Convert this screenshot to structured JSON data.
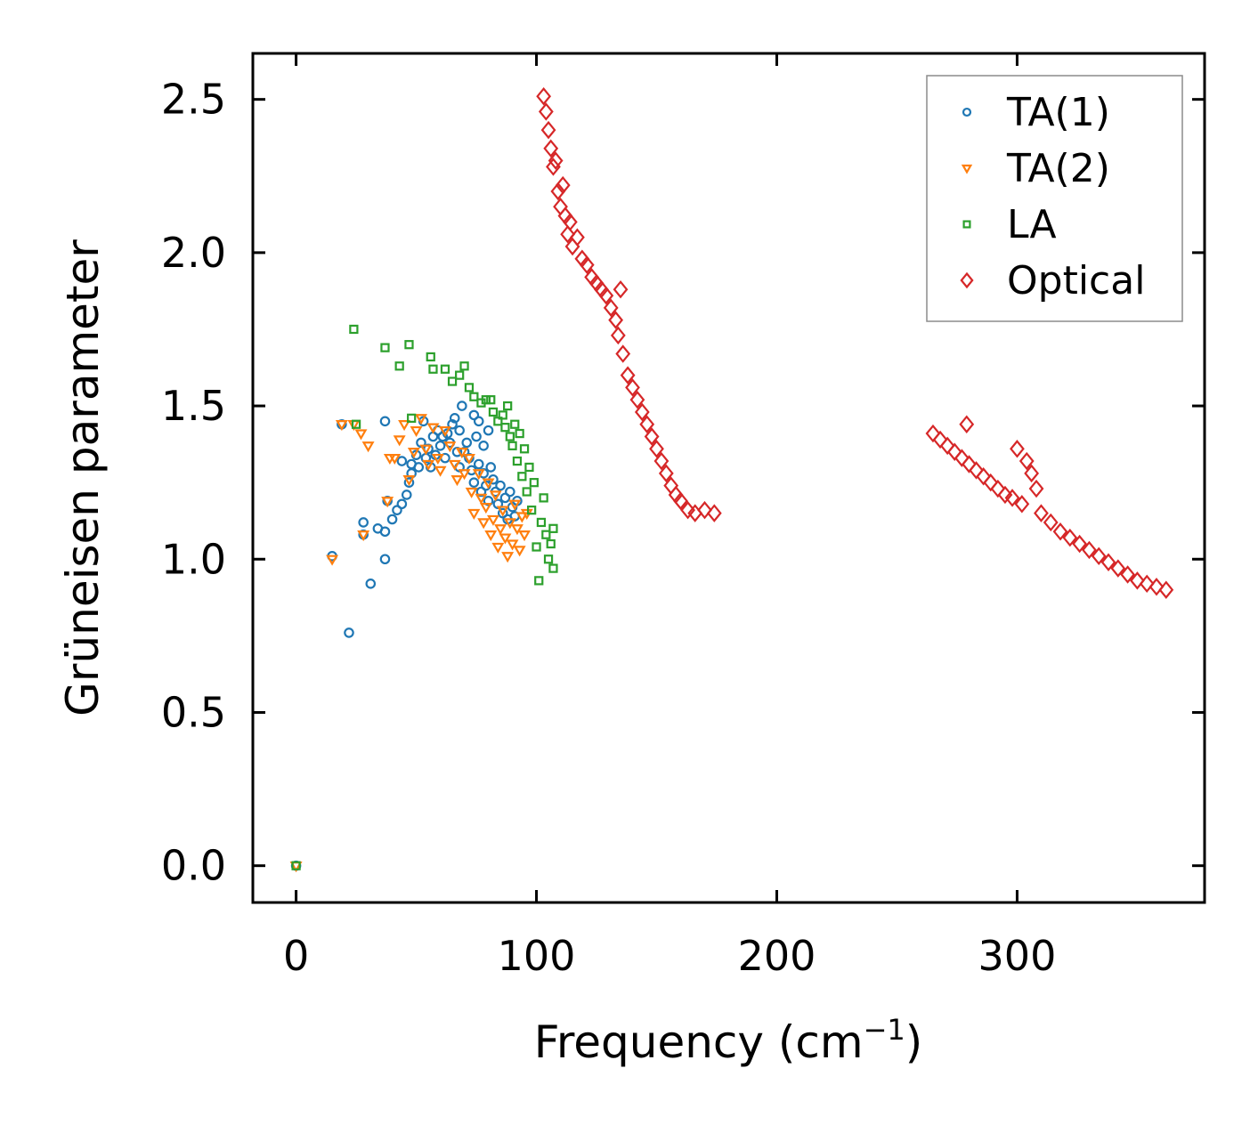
{
  "chart_data": {
    "type": "scatter",
    "title": "",
    "xlabel": "Frequency (cm",
    "xlabel_sup": "−1",
    "xlabel_close": ")",
    "ylabel": "Grüneisen parameter",
    "xlim": [
      -18,
      378
    ],
    "ylim": [
      -0.12,
      2.65
    ],
    "xticks": [
      0,
      100,
      200,
      300
    ],
    "xtick_labels": [
      "0",
      "100",
      "200",
      "300"
    ],
    "yticks": [
      0.0,
      0.5,
      1.0,
      1.5,
      2.0,
      2.5
    ],
    "ytick_labels": [
      "0.0",
      "0.5",
      "1.0",
      "1.5",
      "2.0",
      "2.5"
    ],
    "grid": false,
    "legend_position": "top-right",
    "series": [
      {
        "name": "TA(1)",
        "marker": "circle",
        "color": "#1f77b4",
        "points": [
          [
            0,
            0.0
          ],
          [
            15,
            1.01
          ],
          [
            19,
            1.44
          ],
          [
            22,
            0.76
          ],
          [
            28,
            1.08
          ],
          [
            28,
            1.12
          ],
          [
            31,
            0.92
          ],
          [
            34,
            1.1
          ],
          [
            37,
            1.09
          ],
          [
            37,
            1.0
          ],
          [
            37,
            1.45
          ],
          [
            38,
            1.19
          ],
          [
            40,
            1.13
          ],
          [
            42,
            1.16
          ],
          [
            44,
            1.18
          ],
          [
            44,
            1.32
          ],
          [
            46,
            1.21
          ],
          [
            47,
            1.25
          ],
          [
            48,
            1.28
          ],
          [
            48,
            1.31
          ],
          [
            50,
            1.34
          ],
          [
            51,
            1.3
          ],
          [
            52,
            1.38
          ],
          [
            53,
            1.45
          ],
          [
            54,
            1.33
          ],
          [
            55,
            1.36
          ],
          [
            56,
            1.3
          ],
          [
            57,
            1.4
          ],
          [
            58,
            1.34
          ],
          [
            59,
            1.42
          ],
          [
            60,
            1.37
          ],
          [
            61,
            1.4
          ],
          [
            62,
            1.33
          ],
          [
            63,
            1.41
          ],
          [
            64,
            1.38
          ],
          [
            65,
            1.44
          ],
          [
            66,
            1.46
          ],
          [
            67,
            1.35
          ],
          [
            68,
            1.42
          ],
          [
            68,
            1.3
          ],
          [
            69,
            1.5
          ],
          [
            70,
            1.35
          ],
          [
            71,
            1.38
          ],
          [
            72,
            1.33
          ],
          [
            73,
            1.29
          ],
          [
            74,
            1.47
          ],
          [
            74,
            1.25
          ],
          [
            75,
            1.4
          ],
          [
            76,
            1.31
          ],
          [
            76,
            1.45
          ],
          [
            77,
            1.22
          ],
          [
            78,
            1.37
          ],
          [
            78,
            1.28
          ],
          [
            79,
            1.24
          ],
          [
            80,
            1.42
          ],
          [
            80,
            1.19
          ],
          [
            81,
            1.3
          ],
          [
            82,
            1.26
          ],
          [
            83,
            1.22
          ],
          [
            84,
            1.18
          ],
          [
            85,
            1.24
          ],
          [
            86,
            1.15
          ],
          [
            87,
            1.2
          ],
          [
            88,
            1.13
          ],
          [
            89,
            1.22
          ],
          [
            90,
            1.17
          ],
          [
            91,
            1.14
          ],
          [
            92,
            1.19
          ]
        ]
      },
      {
        "name": "TA(2)",
        "marker": "triangle-down",
        "color": "#ff7f0e",
        "points": [
          [
            0,
            0.0
          ],
          [
            15,
            1.0
          ],
          [
            19,
            1.44
          ],
          [
            24,
            1.44
          ],
          [
            27,
            1.41
          ],
          [
            28,
            1.08
          ],
          [
            30,
            1.37
          ],
          [
            38,
            1.19
          ],
          [
            39,
            1.33
          ],
          [
            41,
            1.33
          ],
          [
            43,
            1.39
          ],
          [
            45,
            1.44
          ],
          [
            47,
            1.26
          ],
          [
            49,
            1.35
          ],
          [
            50,
            1.42
          ],
          [
            52,
            1.46
          ],
          [
            54,
            1.36
          ],
          [
            55,
            1.31
          ],
          [
            57,
            1.43
          ],
          [
            59,
            1.33
          ],
          [
            60,
            1.29
          ],
          [
            62,
            1.42
          ],
          [
            64,
            1.37
          ],
          [
            66,
            1.31
          ],
          [
            67,
            1.26
          ],
          [
            69,
            1.35
          ],
          [
            70,
            1.28
          ],
          [
            72,
            1.33
          ],
          [
            73,
            1.22
          ],
          [
            74,
            1.15
          ],
          [
            76,
            1.28
          ],
          [
            77,
            1.2
          ],
          [
            78,
            1.12
          ],
          [
            79,
            1.17
          ],
          [
            80,
            1.25
          ],
          [
            81,
            1.08
          ],
          [
            82,
            1.13
          ],
          [
            83,
            1.21
          ],
          [
            84,
            1.04
          ],
          [
            85,
            1.1
          ],
          [
            86,
            1.16
          ],
          [
            87,
            1.07
          ],
          [
            88,
            1.01
          ],
          [
            89,
            1.12
          ],
          [
            90,
            1.05
          ],
          [
            91,
            1.18
          ],
          [
            92,
            1.1
          ],
          [
            93,
            1.03
          ],
          [
            94,
            1.14
          ],
          [
            95,
            1.08
          ],
          [
            96,
            1.15
          ]
        ]
      },
      {
        "name": "LA",
        "marker": "square",
        "color": "#2ca02c",
        "points": [
          [
            0,
            0.0
          ],
          [
            24,
            1.75
          ],
          [
            25,
            1.44
          ],
          [
            37,
            1.69
          ],
          [
            43,
            1.63
          ],
          [
            47,
            1.7
          ],
          [
            48,
            1.46
          ],
          [
            56,
            1.66
          ],
          [
            57,
            1.62
          ],
          [
            62,
            1.62
          ],
          [
            65,
            1.58
          ],
          [
            68,
            1.6
          ],
          [
            70,
            1.63
          ],
          [
            72,
            1.56
          ],
          [
            74,
            1.53
          ],
          [
            77,
            1.51
          ],
          [
            79,
            1.52
          ],
          [
            81,
            1.52
          ],
          [
            82,
            1.48
          ],
          [
            84,
            1.45
          ],
          [
            86,
            1.47
          ],
          [
            87,
            1.43
          ],
          [
            88,
            1.5
          ],
          [
            89,
            1.4
          ],
          [
            90,
            1.37
          ],
          [
            91,
            1.44
          ],
          [
            92,
            1.32
          ],
          [
            93,
            1.41
          ],
          [
            94,
            1.27
          ],
          [
            95,
            1.36
          ],
          [
            96,
            1.22
          ],
          [
            97,
            1.3
          ],
          [
            98,
            1.16
          ],
          [
            99,
            1.25
          ],
          [
            100,
            1.04
          ],
          [
            101,
            0.93
          ],
          [
            102,
            1.12
          ],
          [
            103,
            1.2
          ],
          [
            104,
            1.08
          ],
          [
            105,
            1.0
          ],
          [
            106,
            1.05
          ],
          [
            107,
            0.97
          ],
          [
            107,
            1.1
          ]
        ]
      },
      {
        "name": "Optical",
        "marker": "diamond",
        "color": "#d62728",
        "points": [
          [
            103,
            2.51
          ],
          [
            104,
            2.46
          ],
          [
            105,
            2.4
          ],
          [
            106,
            2.34
          ],
          [
            107,
            2.28
          ],
          [
            108,
            2.3
          ],
          [
            109,
            2.2
          ],
          [
            110,
            2.15
          ],
          [
            111,
            2.22
          ],
          [
            112,
            2.12
          ],
          [
            113,
            2.06
          ],
          [
            114,
            2.1
          ],
          [
            115,
            2.02
          ],
          [
            117,
            2.05
          ],
          [
            119,
            1.98
          ],
          [
            121,
            1.96
          ],
          [
            123,
            1.92
          ],
          [
            125,
            1.9
          ],
          [
            127,
            1.88
          ],
          [
            129,
            1.86
          ],
          [
            131,
            1.82
          ],
          [
            133,
            1.78
          ],
          [
            134,
            1.73
          ],
          [
            135,
            1.88
          ],
          [
            136,
            1.67
          ],
          [
            138,
            1.6
          ],
          [
            140,
            1.56
          ],
          [
            142,
            1.52
          ],
          [
            144,
            1.48
          ],
          [
            146,
            1.44
          ],
          [
            148,
            1.4
          ],
          [
            150,
            1.36
          ],
          [
            152,
            1.32
          ],
          [
            154,
            1.28
          ],
          [
            156,
            1.24
          ],
          [
            158,
            1.21
          ],
          [
            160,
            1.19
          ],
          [
            163,
            1.16
          ],
          [
            166,
            1.15
          ],
          [
            170,
            1.16
          ],
          [
            174,
            1.15
          ],
          [
            265,
            1.41
          ],
          [
            268,
            1.39
          ],
          [
            271,
            1.37
          ],
          [
            274,
            1.35
          ],
          [
            277,
            1.33
          ],
          [
            279,
            1.44
          ],
          [
            280,
            1.31
          ],
          [
            283,
            1.29
          ],
          [
            286,
            1.27
          ],
          [
            289,
            1.25
          ],
          [
            292,
            1.23
          ],
          [
            295,
            1.21
          ],
          [
            298,
            1.2
          ],
          [
            300,
            1.36
          ],
          [
            302,
            1.18
          ],
          [
            304,
            1.32
          ],
          [
            306,
            1.28
          ],
          [
            308,
            1.23
          ],
          [
            310,
            1.15
          ],
          [
            314,
            1.12
          ],
          [
            318,
            1.09
          ],
          [
            322,
            1.07
          ],
          [
            326,
            1.05
          ],
          [
            330,
            1.03
          ],
          [
            334,
            1.01
          ],
          [
            338,
            0.99
          ],
          [
            342,
            0.97
          ],
          [
            346,
            0.95
          ],
          [
            350,
            0.93
          ],
          [
            354,
            0.92
          ],
          [
            358,
            0.91
          ],
          [
            362,
            0.9
          ]
        ]
      }
    ]
  }
}
